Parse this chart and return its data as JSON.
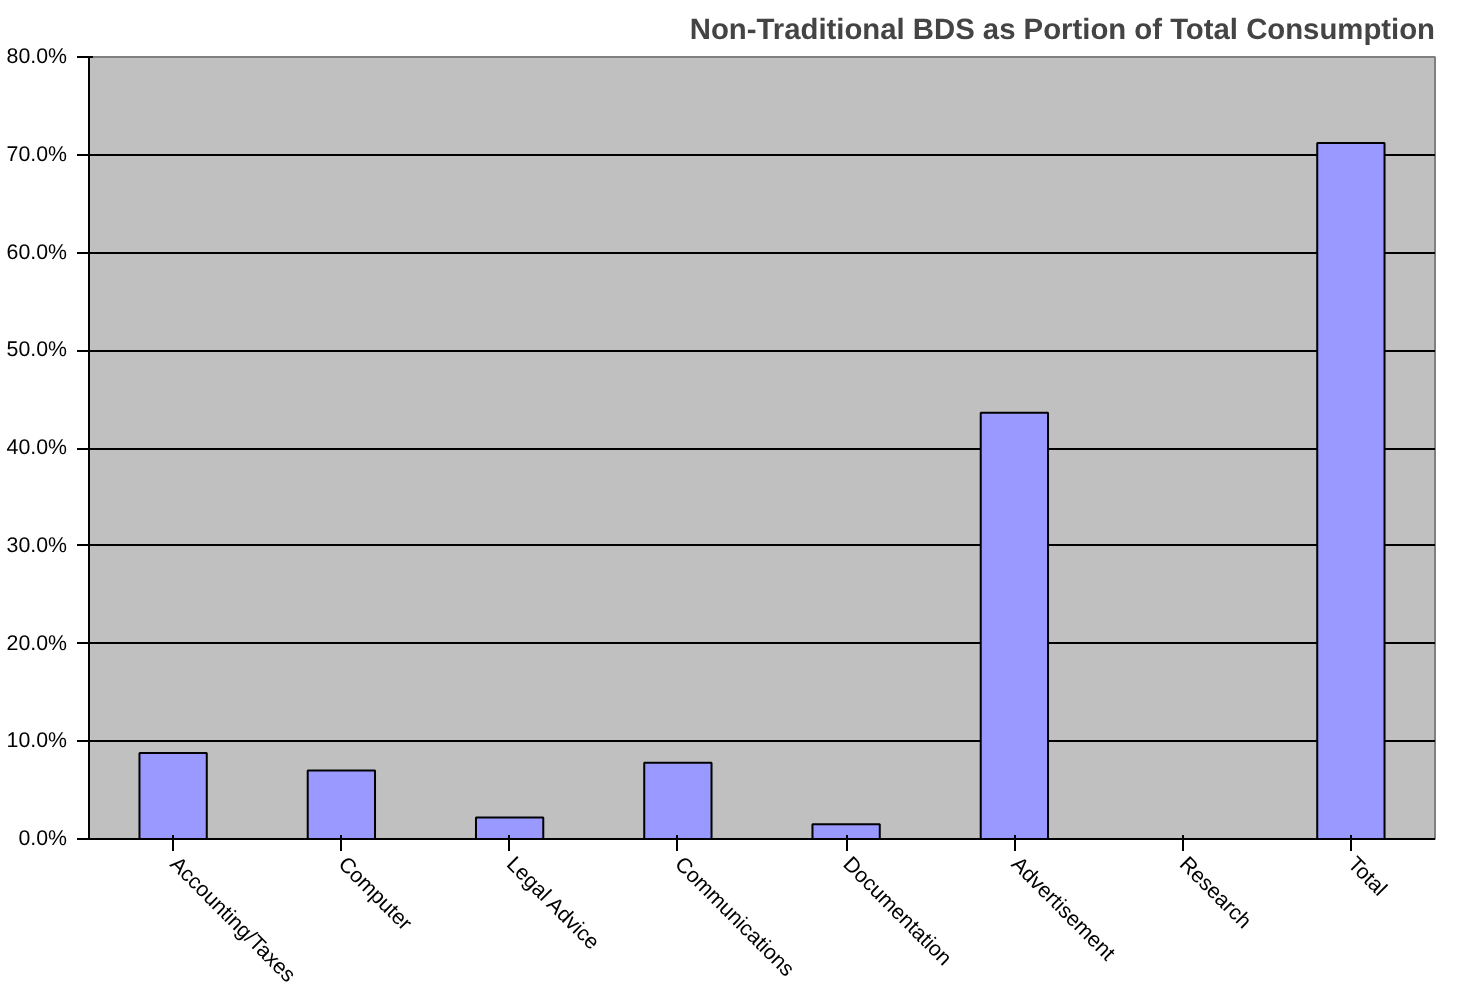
{
  "chart_data": {
    "type": "bar",
    "title": "Non-Traditional BDS as Portion of Total Consumption",
    "categories": [
      "Accounting/Taxes",
      "Computer",
      "Legal Advice",
      "Communications",
      "Documentation",
      "Advertisement",
      "Research",
      "Total"
    ],
    "values": [
      8.8,
      7.0,
      2.2,
      7.8,
      1.5,
      43.6,
      0,
      71.2
    ],
    "color": "#9999ff",
    "ylim": [
      0,
      80
    ],
    "yticks": [
      {
        "value": 0,
        "label": "0.0%"
      },
      {
        "value": 10,
        "label": "10.0%"
      },
      {
        "value": 20,
        "label": "20.0%"
      },
      {
        "value": 30,
        "label": "30.0%"
      },
      {
        "value": 40,
        "label": "40.0%"
      },
      {
        "value": 50,
        "label": "50.0%"
      },
      {
        "value": 60,
        "label": "60.0%"
      },
      {
        "value": 70,
        "label": "70.0%"
      },
      {
        "value": 80,
        "label": "80.0%"
      }
    ],
    "grid": "y"
  }
}
